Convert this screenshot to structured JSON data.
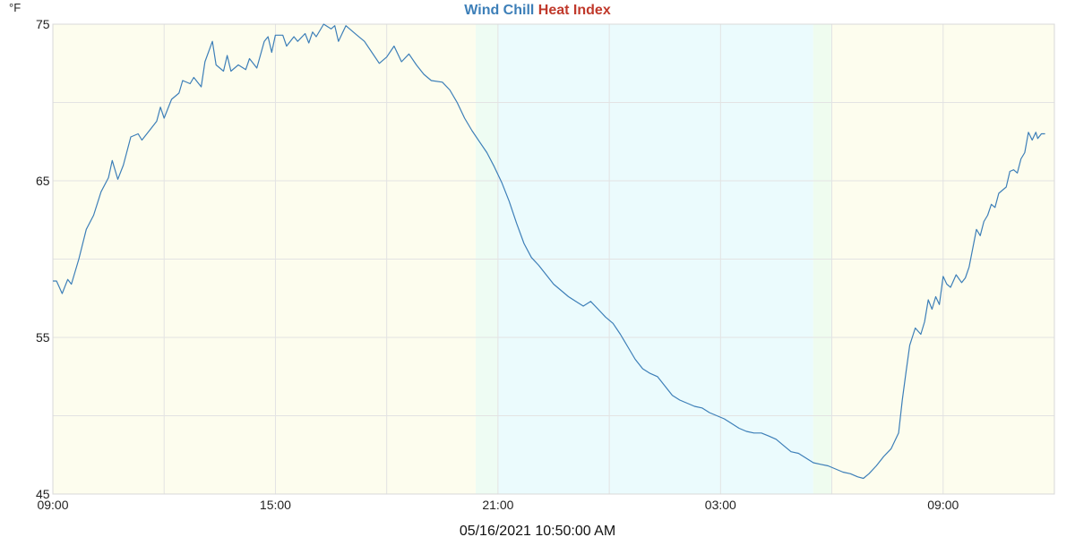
{
  "chart_data": {
    "type": "line",
    "title": "",
    "legend": {
      "placement": "top-center",
      "entries": [
        {
          "name": "Wind Chill",
          "color": "#3d7fb8"
        },
        {
          "name": "Heat Index",
          "color": "#c0392b"
        }
      ]
    },
    "y_unit": "°F",
    "ylim": [
      45,
      75
    ],
    "y_ticks": [
      {
        "value": 45,
        "label": "45"
      },
      {
        "value": 55,
        "label": "55"
      },
      {
        "value": 65,
        "label": "65"
      },
      {
        "value": 75,
        "label": "75"
      }
    ],
    "y_gridlines": [
      45,
      50,
      55,
      60,
      65,
      70,
      75
    ],
    "x_unit": "hours",
    "xlim": [
      9,
      36
    ],
    "x_ticks": [
      {
        "value": 9,
        "label": "09:00"
      },
      {
        "value": 15,
        "label": "15:00"
      },
      {
        "value": 21,
        "label": "21:00"
      },
      {
        "value": 27,
        "label": "03:00"
      },
      {
        "value": 33,
        "label": "09:00"
      }
    ],
    "x_gridlines": [
      9,
      12,
      15,
      18,
      21,
      24,
      27,
      30,
      33,
      36
    ],
    "background_bands": [
      {
        "from": 9,
        "to": 20.4,
        "color": "#fdfdee"
      },
      {
        "from": 20.4,
        "to": 21.0,
        "color": "#eefcf3"
      },
      {
        "from": 21.0,
        "to": 29.5,
        "color": "#ebfbfd"
      },
      {
        "from": 29.5,
        "to": 30.0,
        "color": "#effcef"
      },
      {
        "from": 30.0,
        "to": 36,
        "color": "#fdfdee"
      }
    ],
    "grid": true,
    "series": [
      {
        "name": "Wind Chill",
        "color": "#3d7fb8",
        "points": [
          [
            9.0,
            58.6
          ],
          [
            9.1,
            58.6
          ],
          [
            9.25,
            57.8
          ],
          [
            9.4,
            58.7
          ],
          [
            9.5,
            58.4
          ],
          [
            9.7,
            60.0
          ],
          [
            9.9,
            61.9
          ],
          [
            10.1,
            62.8
          ],
          [
            10.3,
            64.3
          ],
          [
            10.5,
            65.2
          ],
          [
            10.6,
            66.3
          ],
          [
            10.75,
            65.1
          ],
          [
            10.9,
            66.0
          ],
          [
            11.1,
            67.8
          ],
          [
            11.3,
            68.0
          ],
          [
            11.4,
            67.6
          ],
          [
            11.6,
            68.2
          ],
          [
            11.8,
            68.8
          ],
          [
            11.9,
            69.7
          ],
          [
            12.0,
            69.0
          ],
          [
            12.2,
            70.2
          ],
          [
            12.4,
            70.6
          ],
          [
            12.5,
            71.4
          ],
          [
            12.7,
            71.2
          ],
          [
            12.8,
            71.6
          ],
          [
            13.0,
            71.0
          ],
          [
            13.1,
            72.6
          ],
          [
            13.3,
            73.9
          ],
          [
            13.4,
            72.4
          ],
          [
            13.6,
            72.0
          ],
          [
            13.7,
            73.0
          ],
          [
            13.8,
            72.0
          ],
          [
            14.0,
            72.4
          ],
          [
            14.2,
            72.1
          ],
          [
            14.3,
            72.8
          ],
          [
            14.5,
            72.2
          ],
          [
            14.7,
            73.9
          ],
          [
            14.8,
            74.2
          ],
          [
            14.9,
            73.2
          ],
          [
            15.0,
            74.3
          ],
          [
            15.2,
            74.3
          ],
          [
            15.3,
            73.6
          ],
          [
            15.5,
            74.2
          ],
          [
            15.6,
            73.9
          ],
          [
            15.8,
            74.4
          ],
          [
            15.9,
            73.8
          ],
          [
            16.0,
            74.5
          ],
          [
            16.1,
            74.2
          ],
          [
            16.3,
            75.0
          ],
          [
            16.5,
            74.7
          ],
          [
            16.6,
            74.9
          ],
          [
            16.7,
            73.9
          ],
          [
            16.9,
            74.9
          ],
          [
            17.0,
            74.7
          ],
          [
            17.2,
            74.3
          ],
          [
            17.4,
            73.9
          ],
          [
            17.6,
            73.2
          ],
          [
            17.8,
            72.5
          ],
          [
            18.0,
            72.9
          ],
          [
            18.2,
            73.6
          ],
          [
            18.4,
            72.6
          ],
          [
            18.6,
            73.1
          ],
          [
            18.8,
            72.4
          ],
          [
            19.0,
            71.8
          ],
          [
            19.2,
            71.4
          ],
          [
            19.5,
            71.3
          ],
          [
            19.7,
            70.8
          ],
          [
            19.9,
            70.0
          ],
          [
            20.1,
            69.0
          ],
          [
            20.3,
            68.2
          ],
          [
            20.5,
            67.5
          ],
          [
            20.7,
            66.8
          ],
          [
            20.9,
            65.9
          ],
          [
            21.1,
            64.9
          ],
          [
            21.3,
            63.7
          ],
          [
            21.5,
            62.3
          ],
          [
            21.7,
            61.0
          ],
          [
            21.9,
            60.1
          ],
          [
            22.1,
            59.6
          ],
          [
            22.3,
            59.0
          ],
          [
            22.5,
            58.4
          ],
          [
            22.7,
            58.0
          ],
          [
            22.9,
            57.6
          ],
          [
            23.1,
            57.3
          ],
          [
            23.3,
            57.0
          ],
          [
            23.5,
            57.3
          ],
          [
            23.7,
            56.8
          ],
          [
            23.9,
            56.3
          ],
          [
            24.1,
            55.9
          ],
          [
            24.3,
            55.2
          ],
          [
            24.5,
            54.4
          ],
          [
            24.7,
            53.6
          ],
          [
            24.9,
            53.0
          ],
          [
            25.1,
            52.7
          ],
          [
            25.3,
            52.5
          ],
          [
            25.5,
            51.9
          ],
          [
            25.7,
            51.3
          ],
          [
            25.9,
            51.0
          ],
          [
            26.1,
            50.8
          ],
          [
            26.3,
            50.6
          ],
          [
            26.5,
            50.5
          ],
          [
            26.7,
            50.2
          ],
          [
            26.9,
            50.0
          ],
          [
            27.1,
            49.8
          ],
          [
            27.3,
            49.5
          ],
          [
            27.5,
            49.2
          ],
          [
            27.7,
            49.0
          ],
          [
            27.9,
            48.9
          ],
          [
            28.1,
            48.9
          ],
          [
            28.3,
            48.7
          ],
          [
            28.5,
            48.5
          ],
          [
            28.7,
            48.1
          ],
          [
            28.9,
            47.7
          ],
          [
            29.1,
            47.6
          ],
          [
            29.3,
            47.3
          ],
          [
            29.5,
            47.0
          ],
          [
            29.7,
            46.9
          ],
          [
            29.9,
            46.8
          ],
          [
            30.1,
            46.6
          ],
          [
            30.3,
            46.4
          ],
          [
            30.5,
            46.3
          ],
          [
            30.7,
            46.1
          ],
          [
            30.85,
            46.0
          ],
          [
            31.0,
            46.3
          ],
          [
            31.2,
            46.8
          ],
          [
            31.4,
            47.4
          ],
          [
            31.6,
            47.9
          ],
          [
            31.8,
            48.9
          ],
          [
            31.9,
            51.0
          ],
          [
            32.0,
            52.8
          ],
          [
            32.1,
            54.5
          ],
          [
            32.25,
            55.6
          ],
          [
            32.4,
            55.2
          ],
          [
            32.5,
            56.0
          ],
          [
            32.6,
            57.4
          ],
          [
            32.7,
            56.8
          ],
          [
            32.8,
            57.6
          ],
          [
            32.9,
            57.1
          ],
          [
            33.0,
            58.9
          ],
          [
            33.1,
            58.4
          ],
          [
            33.2,
            58.2
          ],
          [
            33.35,
            59.0
          ],
          [
            33.5,
            58.5
          ],
          [
            33.6,
            58.8
          ],
          [
            33.7,
            59.5
          ],
          [
            33.8,
            60.7
          ],
          [
            33.9,
            61.9
          ],
          [
            34.0,
            61.5
          ],
          [
            34.1,
            62.4
          ],
          [
            34.2,
            62.8
          ],
          [
            34.3,
            63.5
          ],
          [
            34.4,
            63.3
          ],
          [
            34.5,
            64.2
          ],
          [
            34.6,
            64.4
          ],
          [
            34.7,
            64.6
          ],
          [
            34.8,
            65.6
          ],
          [
            34.9,
            65.7
          ],
          [
            35.0,
            65.5
          ],
          [
            35.1,
            66.4
          ],
          [
            35.2,
            66.8
          ],
          [
            35.3,
            68.1
          ],
          [
            35.4,
            67.6
          ],
          [
            35.5,
            68.1
          ],
          [
            35.55,
            67.7
          ],
          [
            35.65,
            68.0
          ],
          [
            35.75,
            68.0
          ]
        ]
      }
    ],
    "footer_timestamp": "05/16/2021 10:50:00 AM"
  }
}
